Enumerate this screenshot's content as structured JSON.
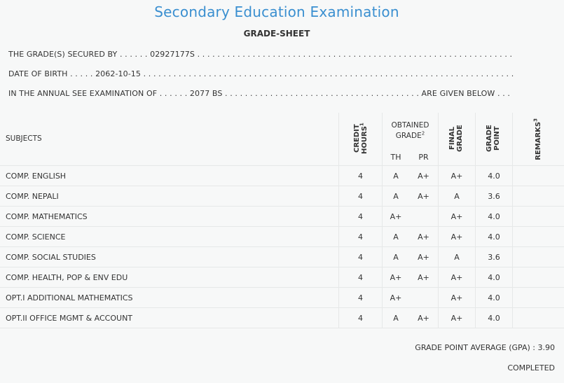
{
  "header": {
    "title": "Secondary Education Examination",
    "subtitle": "GRADE-SHEET"
  },
  "info": {
    "line1": "THE GRADE(S) SECURED BY . . . . . . 02927177S . . . . . . . . . . . . . . . . . . . . . . . . . . . . . . . . . . . . . . . . . . . . . . . . . . . . . . . . . . . . . . .",
    "line2": "DATE OF BIRTH . . . . . 2062-10-15 . . . . . . . . . . . . . . . . . . . . . . . . . . . . . . . . . . . . . . . . . . . . . . . . . . . . . . . . . . . . . . . . . . . . . . . . . .",
    "line3": "IN THE ANNUAL SEE EXAMINATION OF . . . . . . 2077 BS . . . . . . . . . . . . . . . . . . . . . . . . . . . . . . . . . . . . . . . ARE GIVEN BELOW . . ."
  },
  "table": {
    "headers": {
      "subjects": "SUBJECTS",
      "credit_hours": "CREDIT HOURS",
      "credit_sup": "1",
      "obtained_grade": "OBTAINED GRADE",
      "obtained_sup": "2",
      "th": "TH",
      "pr": "PR",
      "final_grade": "FINAL GRADE",
      "grade_point": "GRADE POINT",
      "remarks": "REMARKS",
      "remarks_sup": "3"
    },
    "rows": [
      {
        "subject": "COMP. ENGLISH",
        "credit": "4",
        "th": "A",
        "pr": "A+",
        "final": "A+",
        "gp": "4.0",
        "remarks": ""
      },
      {
        "subject": "COMP. NEPALI",
        "credit": "4",
        "th": "A",
        "pr": "A+",
        "final": "A",
        "gp": "3.6",
        "remarks": ""
      },
      {
        "subject": "COMP. MATHEMATICS",
        "credit": "4",
        "th": "A+",
        "pr": "",
        "final": "A+",
        "gp": "4.0",
        "remarks": ""
      },
      {
        "subject": "COMP. SCIENCE",
        "credit": "4",
        "th": "A",
        "pr": "A+",
        "final": "A+",
        "gp": "4.0",
        "remarks": ""
      },
      {
        "subject": "COMP. SOCIAL STUDIES",
        "credit": "4",
        "th": "A",
        "pr": "A+",
        "final": "A",
        "gp": "3.6",
        "remarks": ""
      },
      {
        "subject": "COMP. HEALTH, POP & ENV EDU",
        "credit": "4",
        "th": "A+",
        "pr": "A+",
        "final": "A+",
        "gp": "4.0",
        "remarks": ""
      },
      {
        "subject": "OPT.I ADDITIONAL MATHEMATICS",
        "credit": "4",
        "th": "A+",
        "pr": "",
        "final": "A+",
        "gp": "4.0",
        "remarks": ""
      },
      {
        "subject": "OPT.II OFFICE MGMT & ACCOUNT",
        "credit": "4",
        "th": "A",
        "pr": "A+",
        "final": "A+",
        "gp": "4.0",
        "remarks": ""
      }
    ]
  },
  "summary": {
    "gpa": "GRADE POINT AVERAGE (GPA) : 3.90",
    "status": "COMPLETED"
  },
  "colors": {
    "title": "#3a8fd0",
    "background": "#f7f8f8",
    "border": "#e6e8e8",
    "text": "#333333"
  }
}
